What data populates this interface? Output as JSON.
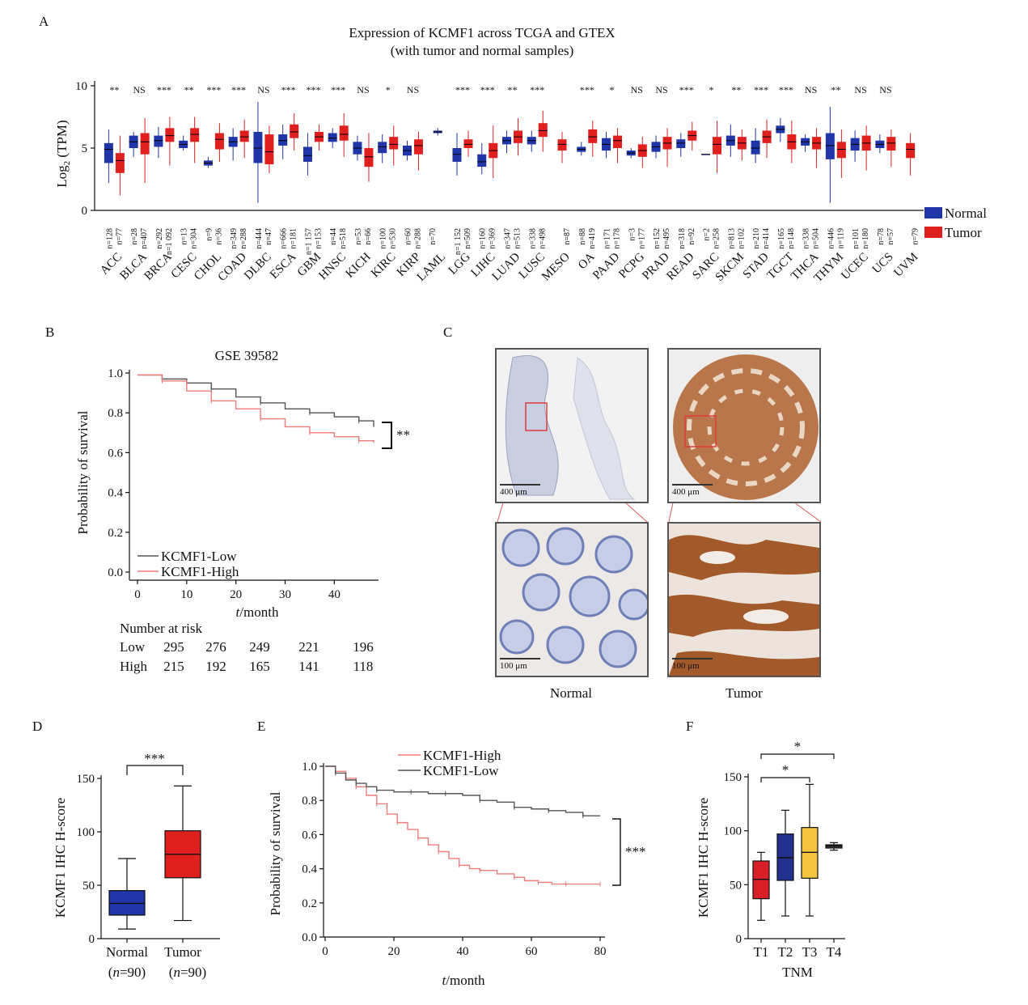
{
  "panels": {
    "A": "A",
    "B": "B",
    "C": "C",
    "D": "D",
    "E": "E",
    "F": "F"
  },
  "colors": {
    "normal": "#1f35a8",
    "tumor": "#e01f1f",
    "low_line": "#555555",
    "high_line": "#f07b7b",
    "f_T1": "#d81f27",
    "f_T2": "#22308f",
    "f_T3": "#f5c542",
    "f_T4": "#333333"
  },
  "chart_data": [
    {
      "id": "A",
      "type": "box",
      "title": "Expression of KCMF1 across TCGA and GTEX",
      "subtitle": "(with tumor and normal samples)",
      "ylabel_main": "Log",
      "ylabel_sub": "2",
      "ylabel_rest": " (TPM)",
      "ylim": [
        0,
        10
      ],
      "yticks": [
        0,
        5,
        10
      ],
      "legend": [
        {
          "name": "Normal",
          "key": "normal"
        },
        {
          "name": "Tumor",
          "key": "tumor"
        }
      ],
      "categories": [
        {
          "name": "ACC",
          "sig": "**",
          "nN": "n=128",
          "nT": "n=77",
          "N": [
            2.2,
            3.8,
            4.9,
            5.4,
            6.5
          ],
          "T": [
            1.2,
            3.0,
            4.0,
            4.6,
            6.0
          ]
        },
        {
          "name": "BLCA",
          "sig": "NS",
          "nN": "n=28",
          "nT": "n=407",
          "N": [
            4.3,
            5.0,
            5.5,
            6.0,
            6.3
          ],
          "T": [
            2.2,
            4.5,
            5.5,
            6.2,
            7.4
          ]
        },
        {
          "name": "BRCA",
          "sig": "***",
          "nN": "n=292",
          "nT": "n=1 092",
          "N": [
            4.2,
            5.1,
            5.6,
            6.0,
            6.7
          ],
          "T": [
            3.6,
            5.5,
            6.0,
            6.6,
            7.5
          ]
        },
        {
          "name": "CESC",
          "sig": "**",
          "nN": "n=13",
          "nT": "n=304",
          "N": [
            4.8,
            5.0,
            5.3,
            5.6,
            6.0
          ],
          "T": [
            3.8,
            5.5,
            6.1,
            6.6,
            7.5
          ]
        },
        {
          "name": "CHOL",
          "sig": "***",
          "nN": "n=9",
          "nT": "n=36",
          "N": [
            3.4,
            3.6,
            3.8,
            4.0,
            4.3
          ],
          "T": [
            3.9,
            4.9,
            5.7,
            6.2,
            7.0
          ]
        },
        {
          "name": "COAD",
          "sig": "***",
          "nN": "n=349",
          "nT": "n=288",
          "N": [
            4.0,
            5.1,
            5.5,
            5.9,
            6.6
          ],
          "T": [
            4.2,
            5.5,
            5.9,
            6.4,
            7.3
          ]
        },
        {
          "name": "DLBC",
          "sig": "NS",
          "nN": "n=444",
          "nT": "n=47",
          "N": [
            0.6,
            3.8,
            5.0,
            6.3,
            8.7
          ],
          "T": [
            3.0,
            3.7,
            4.7,
            6.1,
            6.8
          ]
        },
        {
          "name": "ESCA",
          "sig": "***",
          "nN": "n=666",
          "nT": "n=181",
          "N": [
            4.1,
            5.2,
            5.6,
            6.1,
            6.9
          ],
          "T": [
            4.8,
            5.8,
            6.3,
            6.9,
            7.8
          ]
        },
        {
          "name": "GBM",
          "sig": "***",
          "nN": "n=1 157",
          "nT": "n=153",
          "N": [
            2.8,
            3.9,
            4.4,
            5.1,
            6.2
          ],
          "T": [
            4.8,
            5.5,
            5.9,
            6.3,
            6.9
          ]
        },
        {
          "name": "HNSC",
          "sig": "***",
          "nN": "n=44",
          "nT": "n=518",
          "N": [
            5.0,
            5.5,
            5.8,
            6.2,
            6.6
          ],
          "T": [
            4.3,
            5.6,
            6.1,
            6.8,
            7.8
          ]
        },
        {
          "name": "KICH",
          "sig": "NS",
          "nN": "n=53",
          "nT": "n=66",
          "N": [
            4.0,
            4.5,
            5.0,
            5.5,
            6.0
          ],
          "T": [
            2.3,
            3.5,
            4.3,
            5.0,
            6.2
          ]
        },
        {
          "name": "KIRC",
          "sig": "*",
          "nN": "n=100",
          "nT": "n=530",
          "N": [
            3.8,
            4.6,
            5.1,
            5.5,
            6.1
          ],
          "T": [
            3.6,
            4.9,
            5.3,
            5.9,
            6.8
          ]
        },
        {
          "name": "KIRP",
          "sig": "NS",
          "nN": "n=60",
          "nT": "n=288",
          "N": [
            4.0,
            4.4,
            4.8,
            5.2,
            5.6
          ],
          "T": [
            3.2,
            4.5,
            5.2,
            5.7,
            6.3
          ]
        },
        {
          "name": "LAML",
          "sig": "",
          "nN": "n=70",
          "nT": "",
          "N": [
            6.0,
            6.2,
            6.3,
            6.4,
            6.6
          ],
          "T": null
        },
        {
          "name": "LGG",
          "sig": "***",
          "nN": "n=1 152",
          "nT": "n=509",
          "N": [
            2.8,
            3.9,
            4.5,
            5.0,
            6.2
          ],
          "T": [
            4.3,
            5.0,
            5.3,
            5.7,
            6.4
          ]
        },
        {
          "name": "LIHC",
          "sig": "***",
          "nN": "n=160",
          "nT": "n=369",
          "N": [
            2.9,
            3.5,
            3.9,
            4.5,
            5.4
          ],
          "T": [
            2.6,
            4.2,
            4.8,
            5.4,
            6.8
          ]
        },
        {
          "name": "LUAD",
          "sig": "**",
          "nN": "n=347",
          "nT": "n=513",
          "N": [
            4.6,
            5.3,
            5.6,
            5.9,
            6.4
          ],
          "T": [
            4.4,
            5.4,
            5.9,
            6.4,
            7.4
          ]
        },
        {
          "name": "LUSC",
          "sig": "***",
          "nN": "n=338",
          "nT": "n=498",
          "N": [
            4.7,
            5.3,
            5.6,
            5.9,
            6.4
          ],
          "T": [
            4.7,
            5.9,
            6.4,
            7.0,
            8.0
          ]
        },
        {
          "name": "MESO",
          "sig": "",
          "nN": "",
          "nT": "n=87",
          "N": null,
          "T": [
            3.8,
            4.8,
            5.3,
            5.7,
            6.3
          ]
        },
        {
          "name": "OA",
          "sig": "***",
          "nN": "n=88",
          "nT": "n=419",
          "N": [
            4.4,
            4.7,
            4.9,
            5.1,
            5.5
          ],
          "T": [
            4.3,
            5.4,
            5.9,
            6.5,
            7.2
          ]
        },
        {
          "name": "PAAD",
          "sig": "*",
          "nN": "n=171",
          "nT": "n=178",
          "N": [
            4.2,
            4.8,
            5.3,
            5.8,
            6.3
          ],
          "T": [
            3.8,
            5.0,
            5.6,
            6.0,
            6.6
          ]
        },
        {
          "name": "PCPG",
          "sig": "NS",
          "nN": "n=3",
          "nT": "n=177",
          "N": [
            4.2,
            4.4,
            4.6,
            4.8,
            5.0
          ],
          "T": [
            3.4,
            4.3,
            4.8,
            5.3,
            5.9
          ]
        },
        {
          "name": "PRAD",
          "sig": "NS",
          "nN": "n=152",
          "nT": "n=495",
          "N": [
            4.2,
            4.7,
            5.1,
            5.5,
            6.0
          ],
          "T": [
            3.5,
            4.9,
            5.4,
            5.9,
            6.6
          ]
        },
        {
          "name": "READ",
          "sig": "***",
          "nN": "n=318",
          "nT": "n=92",
          "N": [
            4.3,
            5.0,
            5.4,
            5.7,
            6.2
          ],
          "T": [
            4.8,
            5.6,
            6.0,
            6.4,
            7.1
          ]
        },
        {
          "name": "SARC",
          "sig": "*",
          "nN": "n=2",
          "nT": "n=258",
          "N": [
            4.5,
            4.5,
            4.5,
            4.5,
            4.5
          ],
          "T": [
            3.0,
            4.5,
            5.3,
            5.9,
            7.2
          ]
        },
        {
          "name": "SKCM",
          "sig": "**",
          "nN": "n=813",
          "nT": "n=102",
          "N": [
            4.3,
            5.2,
            5.6,
            6.0,
            6.9
          ],
          "T": [
            4.0,
            4.9,
            5.4,
            5.9,
            6.5
          ]
        },
        {
          "name": "STAD",
          "sig": "***",
          "nN": "n=210",
          "nT": "n=414",
          "N": [
            3.8,
            4.5,
            5.0,
            5.6,
            6.6
          ],
          "T": [
            4.2,
            5.4,
            5.9,
            6.4,
            7.3
          ]
        },
        {
          "name": "TGCT",
          "sig": "***",
          "nN": "n=165",
          "nT": "n=148",
          "N": [
            5.5,
            6.2,
            6.5,
            6.8,
            7.4
          ],
          "T": [
            3.8,
            4.9,
            5.5,
            6.1,
            7.2
          ]
        },
        {
          "name": "THCA",
          "sig": "NS",
          "nN": "n=338",
          "nT": "n=504",
          "N": [
            4.7,
            5.2,
            5.5,
            5.8,
            6.1
          ],
          "T": [
            3.4,
            4.9,
            5.4,
            5.9,
            6.6
          ]
        },
        {
          "name": "THYM",
          "sig": "**",
          "nN": "n=446",
          "nT": "n=119",
          "N": [
            0.6,
            4.1,
            5.2,
            6.2,
            8.3
          ],
          "T": [
            2.6,
            4.2,
            4.9,
            5.5,
            6.5
          ]
        },
        {
          "name": "UCEC",
          "sig": "NS",
          "nN": "n=101",
          "nT": "n=180",
          "N": [
            3.9,
            4.8,
            5.3,
            5.8,
            6.4
          ],
          "T": [
            3.2,
            4.8,
            5.4,
            6.0,
            6.8
          ]
        },
        {
          "name": "UCS",
          "sig": "NS",
          "nN": "n=78",
          "nT": "n=57",
          "N": [
            4.6,
            5.0,
            5.3,
            5.6,
            6.1
          ],
          "T": [
            3.5,
            4.8,
            5.4,
            5.9,
            6.5
          ]
        },
        {
          "name": "UVM",
          "sig": "",
          "nN": "",
          "nT": "n=79",
          "N": null,
          "T": [
            2.8,
            4.2,
            4.9,
            5.4,
            6.2
          ]
        }
      ]
    },
    {
      "id": "B",
      "type": "line",
      "title": "GSE 39582",
      "ylabel": "Probability of survival",
      "xlabel_italic": "t",
      "xlabel_rest": "/month",
      "xlim": [
        0,
        48
      ],
      "ylim": [
        0,
        1.0
      ],
      "xticks": [
        0,
        10,
        20,
        30,
        40
      ],
      "yticks": [
        "0.0",
        "0.2",
        "0.4",
        "0.6",
        "0.8",
        "1.0"
      ],
      "significance": "**",
      "series": [
        {
          "name": "KCMF1-Low",
          "key": "low_line",
          "x": [
            0,
            5,
            10,
            15,
            20,
            25,
            30,
            35,
            40,
            45,
            48
          ],
          "y": [
            0.99,
            0.97,
            0.95,
            0.92,
            0.88,
            0.85,
            0.82,
            0.8,
            0.78,
            0.76,
            0.73
          ]
        },
        {
          "name": "KCMF1-High",
          "key": "high_line",
          "x": [
            0,
            5,
            10,
            15,
            20,
            25,
            30,
            35,
            40,
            45,
            48
          ],
          "y": [
            0.99,
            0.96,
            0.91,
            0.86,
            0.82,
            0.77,
            0.73,
            0.7,
            0.68,
            0.66,
            0.65
          ]
        }
      ],
      "risk_table": {
        "title": "Number at risk",
        "rows": [
          {
            "label": "Low",
            "values": [
              "295",
              "276",
              "249",
              "221",
              "196"
            ]
          },
          {
            "label": "High",
            "values": [
              "215",
              "192",
              "165",
              "141",
              "118"
            ]
          }
        ]
      }
    },
    {
      "id": "D",
      "type": "box",
      "ylabel": "KCMF1 IHC H-score",
      "significance": "***",
      "ylim": [
        0,
        150
      ],
      "yticks": [
        0,
        50,
        100,
        150
      ],
      "categories": [
        {
          "name": "Normal",
          "n": "n",
          "n_val": "=90",
          "key": "normal",
          "stats": [
            9,
            22,
            33,
            45,
            75
          ]
        },
        {
          "name": "Tumor",
          "n": "n",
          "n_val": "=90",
          "key": "tumor",
          "stats": [
            17,
            57,
            79,
            101,
            143
          ]
        }
      ]
    },
    {
      "id": "E",
      "type": "line",
      "ylabel": "Probability of survival",
      "xlabel_italic": "t",
      "xlabel_rest": "/month",
      "xlim": [
        0,
        80
      ],
      "ylim": [
        0,
        1.0
      ],
      "xticks": [
        0,
        20,
        40,
        60,
        80
      ],
      "yticks": [
        "0.0",
        "0.2",
        "0.4",
        "0.6",
        "0.8",
        "1.0"
      ],
      "significance": "***",
      "series": [
        {
          "name": "KCMF1-High",
          "key": "high_line",
          "x": [
            0,
            3,
            6,
            9,
            12,
            15,
            18,
            21,
            24,
            27,
            30,
            33,
            36,
            39,
            42,
            45,
            50,
            55,
            58,
            62,
            66,
            70,
            75,
            80
          ],
          "y": [
            1.0,
            0.97,
            0.93,
            0.88,
            0.83,
            0.78,
            0.72,
            0.67,
            0.63,
            0.58,
            0.54,
            0.5,
            0.46,
            0.42,
            0.4,
            0.39,
            0.37,
            0.35,
            0.33,
            0.32,
            0.31,
            0.31,
            0.31,
            0.31
          ]
        },
        {
          "name": "KCMF1-Low",
          "key": "low_line",
          "x": [
            0,
            3,
            6,
            9,
            12,
            15,
            20,
            25,
            30,
            35,
            40,
            45,
            50,
            55,
            60,
            65,
            70,
            75,
            80
          ],
          "y": [
            1.0,
            0.96,
            0.92,
            0.9,
            0.88,
            0.86,
            0.85,
            0.85,
            0.84,
            0.84,
            0.83,
            0.8,
            0.79,
            0.76,
            0.75,
            0.74,
            0.73,
            0.71,
            0.71
          ]
        }
      ]
    },
    {
      "id": "F",
      "type": "box",
      "ylabel": "KCMF1 IHC H-score",
      "xlabel": "TNM",
      "ylim": [
        0,
        150
      ],
      "yticks": [
        0,
        50,
        100,
        150
      ],
      "comparisons": [
        {
          "from": "T1",
          "to": "T3",
          "sig": "*"
        },
        {
          "from": "T1",
          "to": "T4",
          "sig": "*"
        }
      ],
      "categories": [
        {
          "name": "T1",
          "key": "f_T1",
          "stats": [
            17,
            37,
            55,
            72,
            80
          ]
        },
        {
          "name": "T2",
          "key": "f_T2",
          "stats": [
            21,
            54,
            75,
            97,
            119
          ]
        },
        {
          "name": "T3",
          "key": "f_T3",
          "stats": [
            21,
            56,
            80,
            103,
            143
          ]
        },
        {
          "name": "T4",
          "key": "f_T4",
          "stats": [
            82,
            84,
            86,
            87,
            89
          ]
        }
      ]
    }
  ],
  "ihc": {
    "labels": {
      "normal": "Normal",
      "tumor": "Tumor"
    },
    "scale_low": "400 μm",
    "scale_high": "100 μm"
  }
}
